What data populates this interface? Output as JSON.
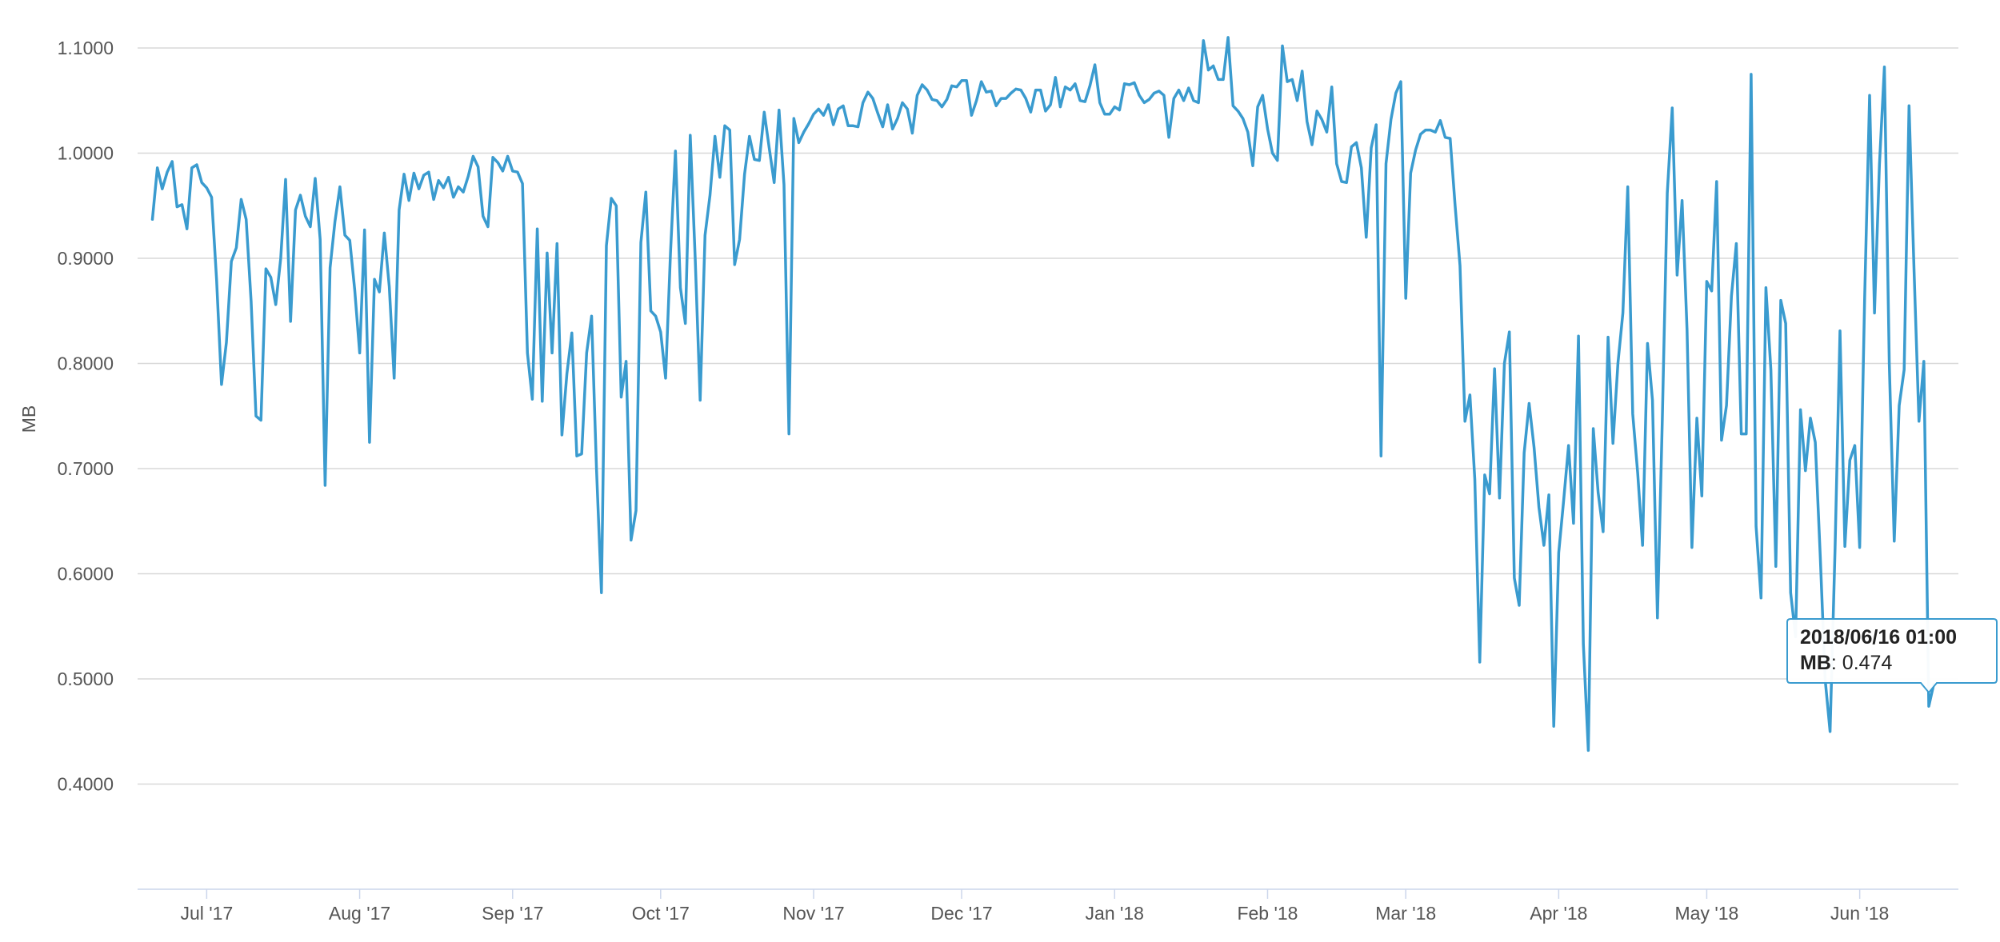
{
  "chart_data": {
    "type": "line",
    "title": "",
    "xlabel": "",
    "ylabel": "MB",
    "ylim": [
      0.3,
      1.1
    ],
    "yticks": [
      "0.4000",
      "0.5000",
      "0.6000",
      "0.7000",
      "0.8000",
      "0.9000",
      "1.0000",
      "1.1000"
    ],
    "ytick_values": [
      0.4,
      0.5,
      0.6,
      0.7,
      0.8,
      0.9,
      1.0,
      1.1
    ],
    "x_range": [
      "2017-06-17",
      "2018-06-21"
    ],
    "xticks": [
      {
        "label": "Jul '17",
        "date": "2017-07-01"
      },
      {
        "label": "Aug '17",
        "date": "2017-08-01"
      },
      {
        "label": "Sep '17",
        "date": "2017-09-01"
      },
      {
        "label": "Oct '17",
        "date": "2017-10-01"
      },
      {
        "label": "Nov '17",
        "date": "2017-11-01"
      },
      {
        "label": "Dec '17",
        "date": "2017-12-01"
      },
      {
        "label": "Jan '18",
        "date": "2018-01-01"
      },
      {
        "label": "Feb '18",
        "date": "2018-02-01"
      },
      {
        "label": "Mar '18",
        "date": "2018-03-01"
      },
      {
        "label": "Apr '18",
        "date": "2018-04-01"
      },
      {
        "label": "May '18",
        "date": "2018-05-01"
      },
      {
        "label": "Jun '18",
        "date": "2018-06-01"
      }
    ],
    "grid": true,
    "legend": "none",
    "colors": {
      "line": "#3a9bcf",
      "grid": "#d8d8d8",
      "axis": "#ccd6eb",
      "tooltip_border": "#3a9bcf"
    },
    "series": [
      {
        "start_date": "2017-06-20",
        "values": [
          0.937,
          0.986,
          0.966,
          0.982,
          0.992,
          0.949,
          0.951,
          0.928,
          0.986,
          0.989,
          0.972,
          0.967,
          0.958,
          0.88,
          0.78,
          0.82,
          0.897,
          0.91,
          0.956,
          0.937,
          0.859,
          0.75,
          0.746,
          0.89,
          0.882,
          0.856,
          0.9,
          0.975,
          0.84,
          0.946,
          0.96,
          0.94,
          0.93,
          0.976,
          0.918,
          0.684,
          0.891,
          0.935,
          0.968,
          0.922,
          0.917,
          0.87,
          0.81,
          0.927,
          0.725,
          0.88,
          0.868,
          0.924,
          0.873,
          0.786,
          0.946,
          0.98,
          0.955,
          0.981,
          0.966,
          0.979,
          0.982,
          0.956,
          0.974,
          0.967,
          0.977,
          0.958,
          0.968,
          0.963,
          0.978,
          0.997,
          0.987,
          0.94,
          0.93,
          0.996,
          0.991,
          0.983,
          0.997,
          0.983,
          0.982,
          0.971,
          0.81,
          0.766,
          0.928,
          0.764,
          0.905,
          0.81,
          0.914,
          0.732,
          0.79,
          0.829,
          0.712,
          0.714,
          0.81,
          0.845,
          0.7,
          0.582,
          0.912,
          0.957,
          0.95,
          0.768,
          0.802,
          0.632,
          0.66,
          0.915,
          0.963,
          0.85,
          0.845,
          0.83,
          0.786,
          0.905,
          1.002,
          0.872,
          0.838,
          1.017,
          0.9,
          0.765,
          0.922,
          0.96,
          1.016,
          0.977,
          1.026,
          1.022,
          0.894,
          0.918,
          0.98,
          1.016,
          0.994,
          0.993,
          1.039,
          1.005,
          0.972,
          1.041,
          0.97,
          0.733,
          1.033,
          1.01,
          1.02,
          1.028,
          1.037,
          1.042,
          1.036,
          1.046,
          1.027,
          1.042,
          1.045,
          1.026,
          1.026,
          1.025,
          1.048,
          1.058,
          1.052,
          1.038,
          1.025,
          1.046,
          1.023,
          1.033,
          1.048,
          1.042,
          1.019,
          1.055,
          1.065,
          1.06,
          1.051,
          1.05,
          1.044,
          1.051,
          1.064,
          1.063,
          1.069,
          1.069,
          1.036,
          1.05,
          1.068,
          1.058,
          1.059,
          1.045,
          1.052,
          1.052,
          1.057,
          1.061,
          1.06,
          1.052,
          1.039,
          1.06,
          1.06,
          1.04,
          1.046,
          1.072,
          1.044,
          1.063,
          1.06,
          1.066,
          1.05,
          1.049,
          1.064,
          1.084,
          1.048,
          1.037,
          1.037,
          1.044,
          1.041,
          1.066,
          1.065,
          1.067,
          1.055,
          1.048,
          1.051,
          1.057,
          1.059,
          1.055,
          1.015,
          1.052,
          1.06,
          1.05,
          1.062,
          1.05,
          1.048,
          1.107,
          1.079,
          1.083,
          1.07,
          1.07,
          1.11,
          1.045,
          1.04,
          1.033,
          1.02,
          0.988,
          1.044,
          1.055,
          1.023,
          1.0,
          0.993,
          1.102,
          1.068,
          1.07,
          1.05,
          1.078,
          1.03,
          1.008,
          1.04,
          1.032,
          1.02,
          1.063,
          0.99,
          0.973,
          0.972,
          1.006,
          1.01,
          0.986,
          0.92,
          1.005,
          1.027,
          0.712,
          0.99,
          1.032,
          1.057,
          1.068,
          0.862,
          0.981,
          1.003,
          1.018,
          1.022,
          1.022,
          1.02,
          1.031,
          1.015,
          1.014,
          0.95,
          0.893,
          0.745,
          0.77,
          0.69,
          0.516,
          0.694,
          0.676,
          0.795,
          0.672,
          0.8,
          0.83,
          0.596,
          0.57,
          0.715,
          0.762,
          0.72,
          0.663,
          0.627,
          0.675,
          0.455,
          0.62,
          0.67,
          0.722,
          0.648,
          0.826,
          0.533,
          0.432,
          0.738,
          0.677,
          0.64,
          0.825,
          0.724,
          0.8,
          0.848,
          0.968,
          0.752,
          0.696,
          0.627,
          0.819,
          0.765,
          0.558,
          0.747,
          0.962,
          1.043,
          0.884,
          0.955,
          0.832,
          0.625,
          0.748,
          0.674,
          0.878,
          0.869,
          0.973,
          0.727,
          0.76,
          0.864,
          0.914,
          0.733,
          0.733,
          1.075,
          0.645,
          0.577,
          0.872,
          0.794,
          0.607,
          0.86,
          0.838,
          0.582,
          0.54,
          0.756,
          0.698,
          0.748,
          0.725,
          0.617,
          0.499,
          0.45,
          0.623,
          0.831,
          0.626,
          0.708,
          0.722,
          0.625,
          0.862,
          1.055,
          0.848,
          0.989,
          1.082,
          0.8,
          0.631,
          0.76,
          0.794,
          1.045,
          0.89,
          0.745,
          0.802,
          0.474,
          0.495
        ]
      }
    ]
  },
  "tooltip": {
    "header": "2018/06/16 01:00",
    "label": "MB",
    "value": "0.474"
  }
}
